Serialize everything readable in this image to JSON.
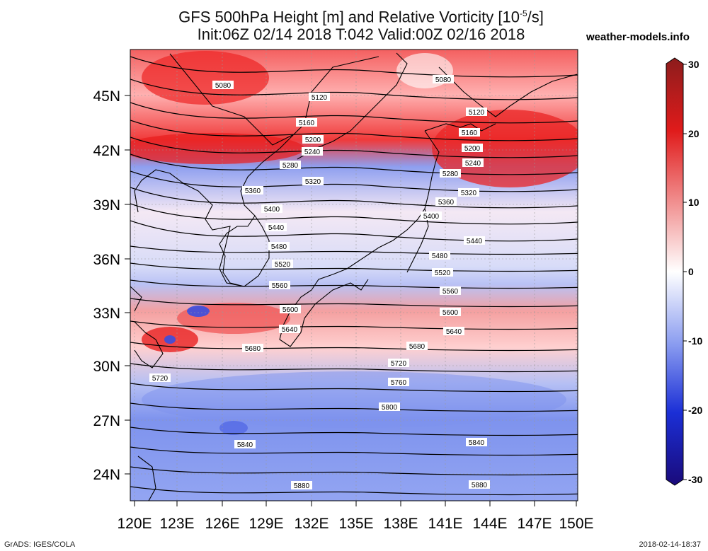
{
  "title_line1": "GFS 500hPa Height [m] and Relative Vorticity [10",
  "title_sup": "-5",
  "title_line1_end": "/s]",
  "title_line2": "Init:06Z 02/14 2018 T:042 Valid:00Z 02/16 2018",
  "brand": "weather-models.info",
  "footer_left": "GrADS: IGES/COLA",
  "footer_right": "2018-02-14-18:37",
  "map": {
    "lat_labels": [
      "45N",
      "42N",
      "39N",
      "36N",
      "33N",
      "30N",
      "27N",
      "24N"
    ],
    "lon_labels": [
      "120E",
      "123E",
      "126E",
      "129E",
      "132E",
      "135E",
      "138E",
      "141E",
      "144E",
      "147E",
      "150E"
    ],
    "colorbar": {
      "labels": [
        "30",
        "20",
        "10",
        "0",
        "-10",
        "-20",
        "-30"
      ],
      "colors": [
        "#8c1c1c",
        "#e01b1b",
        "#f08a8a",
        "#ffffff",
        "#8a9cf0",
        "#1b2fd6",
        "#1a0a7a"
      ]
    },
    "contour_labels": [
      {
        "text": "5080"
      },
      {
        "text": "5080"
      },
      {
        "text": "5120"
      },
      {
        "text": "5120"
      },
      {
        "text": "5160"
      },
      {
        "text": "5160"
      },
      {
        "text": "5200"
      },
      {
        "text": "5200"
      },
      {
        "text": "5240"
      },
      {
        "text": "5240"
      },
      {
        "text": "5280"
      },
      {
        "text": "5280"
      },
      {
        "text": "5320"
      },
      {
        "text": "5320"
      },
      {
        "text": "5360"
      },
      {
        "text": "5360"
      },
      {
        "text": "5400"
      },
      {
        "text": "5400"
      },
      {
        "text": "5440"
      },
      {
        "text": "5440"
      },
      {
        "text": "5480"
      },
      {
        "text": "5480"
      },
      {
        "text": "5520"
      },
      {
        "text": "5520"
      },
      {
        "text": "5560"
      },
      {
        "text": "5560"
      },
      {
        "text": "5600"
      },
      {
        "text": "5600"
      },
      {
        "text": "5640"
      },
      {
        "text": "5640"
      },
      {
        "text": "5680"
      },
      {
        "text": "5680"
      },
      {
        "text": "5720"
      },
      {
        "text": "5720"
      },
      {
        "text": "5760"
      },
      {
        "text": "5800"
      },
      {
        "text": "5840"
      },
      {
        "text": "5840"
      },
      {
        "text": "5880"
      },
      {
        "text": "5880"
      }
    ]
  }
}
